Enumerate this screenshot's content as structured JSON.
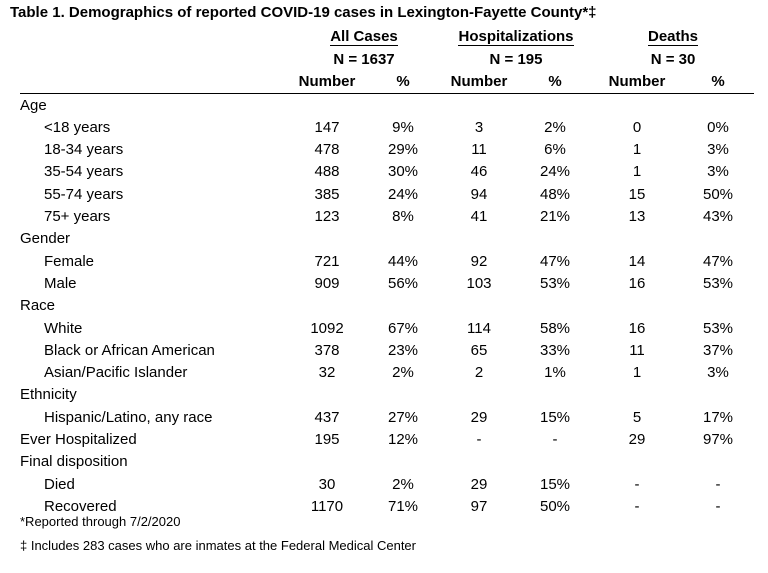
{
  "title": "Table 1. Demographics of reported COVID-19 cases in Lexington-Fayette County*‡",
  "groups": [
    {
      "name": "All Cases",
      "n": "N = 1637"
    },
    {
      "name": "Hospitalizations",
      "n": "N = 195"
    },
    {
      "name": "Deaths",
      "n": "N = 30"
    }
  ],
  "col_labels": {
    "number": "Number",
    "pct": "%"
  },
  "rows": [
    {
      "label": "Age",
      "type": "section"
    },
    {
      "label": "<18 years",
      "type": "item",
      "values": [
        "147",
        "9%",
        "3",
        "2%",
        "0",
        "0%"
      ]
    },
    {
      "label": "18-34 years",
      "type": "item",
      "values": [
        "478",
        "29%",
        "11",
        "6%",
        "1",
        "3%"
      ]
    },
    {
      "label": "35-54 years",
      "type": "item",
      "values": [
        "488",
        "30%",
        "46",
        "24%",
        "1",
        "3%"
      ]
    },
    {
      "label": "55-74 years",
      "type": "item",
      "values": [
        "385",
        "24%",
        "94",
        "48%",
        "15",
        "50%"
      ]
    },
    {
      "label": "75+ years",
      "type": "item",
      "values": [
        "123",
        "8%",
        "41",
        "21%",
        "13",
        "43%"
      ]
    },
    {
      "label": "Gender",
      "type": "section"
    },
    {
      "label": "Female",
      "type": "item",
      "values": [
        "721",
        "44%",
        "92",
        "47%",
        "14",
        "47%"
      ]
    },
    {
      "label": "Male",
      "type": "item",
      "values": [
        "909",
        "56%",
        "103",
        "53%",
        "16",
        "53%"
      ]
    },
    {
      "label": "Race",
      "type": "section"
    },
    {
      "label": "White",
      "type": "item",
      "values": [
        "1092",
        "67%",
        "114",
        "58%",
        "16",
        "53%"
      ]
    },
    {
      "label": "Black or African American",
      "type": "item",
      "values": [
        "378",
        "23%",
        "65",
        "33%",
        "11",
        "37%"
      ]
    },
    {
      "label": "Asian/Pacific Islander",
      "type": "item",
      "values": [
        "32",
        "2%",
        "2",
        "1%",
        "1",
        "3%"
      ]
    },
    {
      "label": "Ethnicity",
      "type": "section"
    },
    {
      "label": "Hispanic/Latino, any race",
      "type": "item",
      "values": [
        "437",
        "27%",
        "29",
        "15%",
        "5",
        "17%"
      ]
    },
    {
      "label": "Ever Hospitalized",
      "type": "section",
      "values": [
        "195",
        "12%",
        "-",
        "-",
        "29",
        "97%"
      ]
    },
    {
      "label": "Final disposition",
      "type": "section"
    },
    {
      "label": "Died",
      "type": "item",
      "values": [
        "30",
        "2%",
        "29",
        "15%",
        "-",
        "-"
      ]
    },
    {
      "label": "Recovered",
      "type": "item",
      "values": [
        "1170",
        "71%",
        "97",
        "50%",
        "-",
        "-"
      ]
    }
  ],
  "footnotes": [
    "*Reported through 7/2/2020",
    "‡ Includes 283 cases who are inmates at the Federal Medical Center"
  ]
}
